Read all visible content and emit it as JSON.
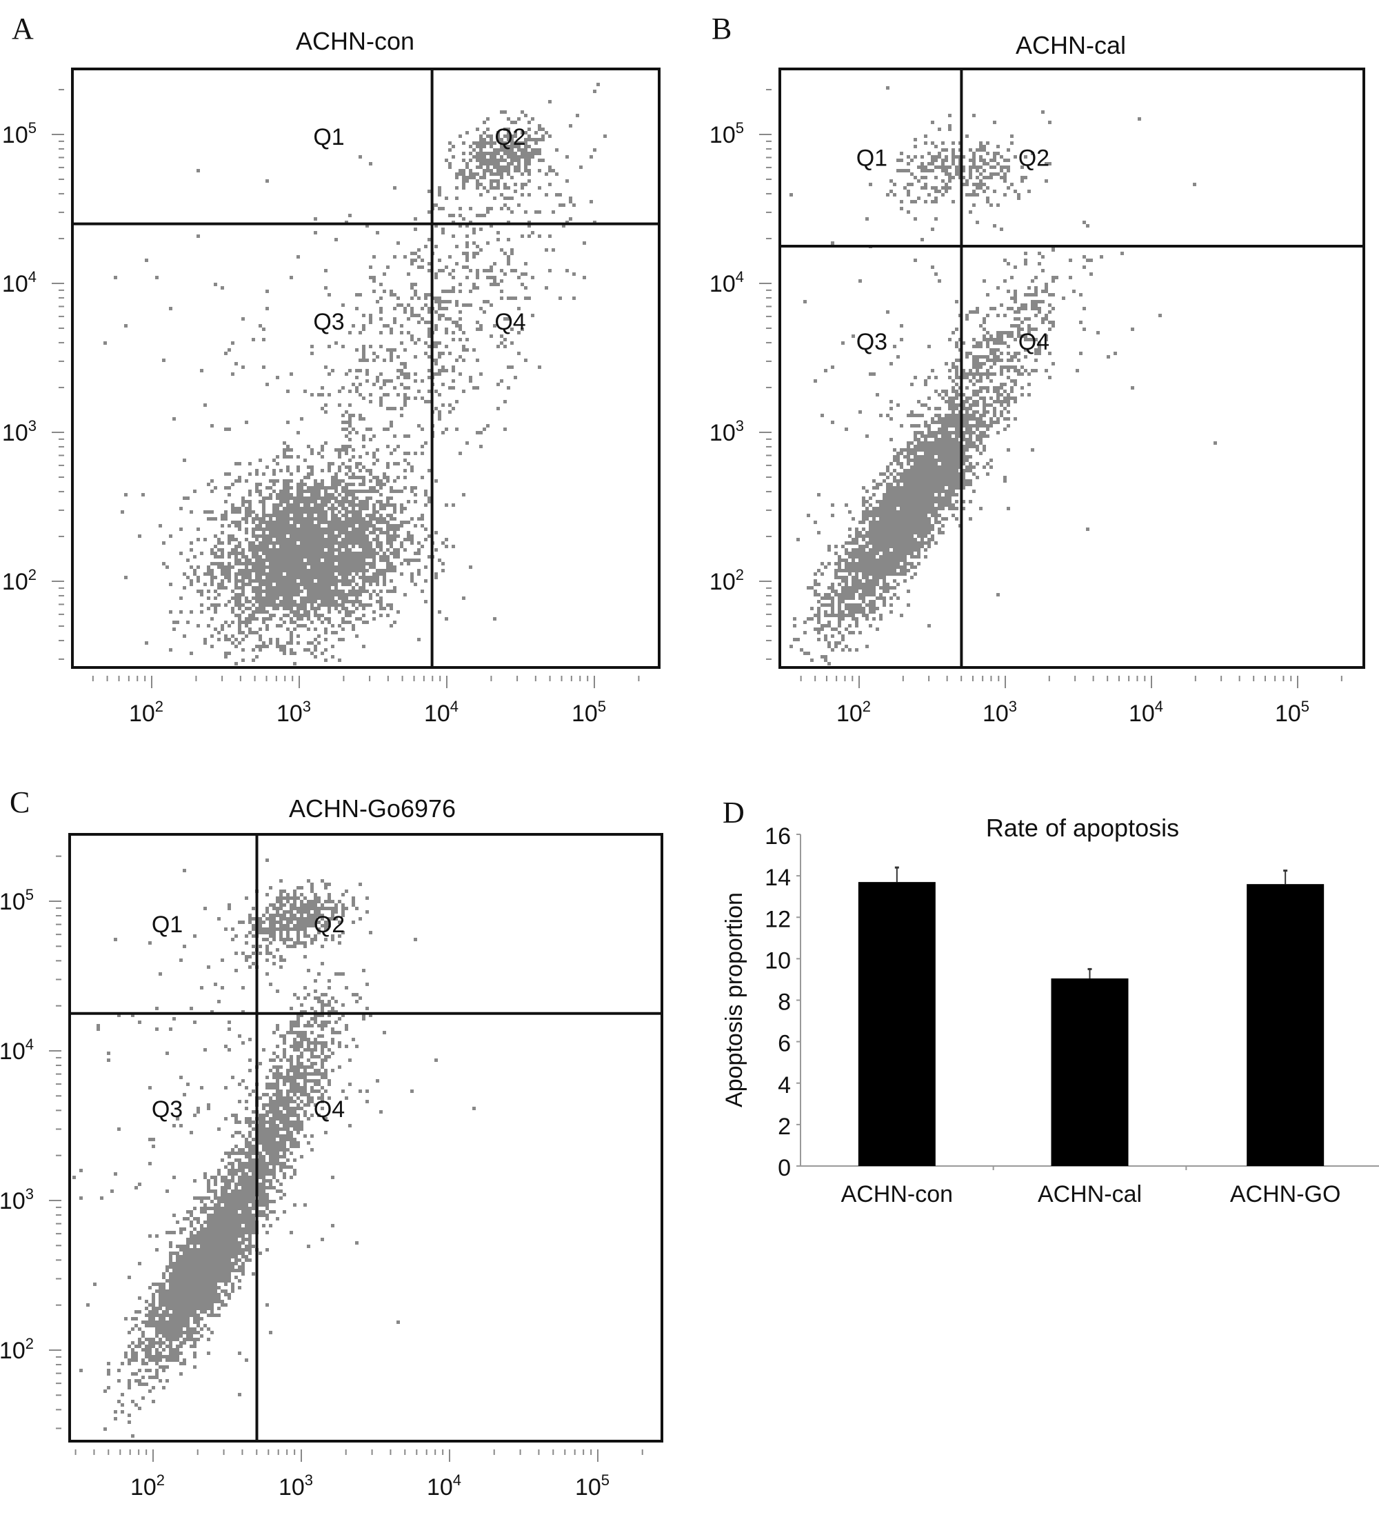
{
  "chart_data": [
    {
      "panel": "A",
      "type": "scatter",
      "title": "ACHN-con",
      "xscale": "log",
      "yscale": "log",
      "xticks": [
        "10^2",
        "10^3",
        "10^4",
        "10^5"
      ],
      "yticks": [
        "10^5",
        "10^4",
        "10^3",
        "10^2"
      ],
      "xlim_log10": [
        1.6,
        5.45
      ],
      "ylim_log10": [
        1.5,
        5.45
      ],
      "gate_log10": {
        "x": 3.9,
        "y": 4.4
      },
      "quadrants": [
        "Q1",
        "Q2",
        "Q3",
        "Q4"
      ],
      "populations": [
        {
          "n": 3200,
          "cx": 3.05,
          "cy": 2.2,
          "sx": 0.33,
          "sy": 0.28,
          "rho": 0.2
        },
        {
          "n": 350,
          "cx": 4.35,
          "cy": 4.85,
          "sx": 0.15,
          "sy": 0.12,
          "rho": 0.3
        },
        {
          "n": 700,
          "cx": 3.9,
          "cy": 3.7,
          "sx": 0.45,
          "sy": 0.6,
          "rho": 0.7
        },
        {
          "n": 120,
          "cx": 3.0,
          "cy": 3.2,
          "sx": 0.7,
          "sy": 0.9,
          "rho": 0.2
        }
      ]
    },
    {
      "panel": "B",
      "type": "scatter",
      "title": "ACHN-cal",
      "xscale": "log",
      "yscale": "log",
      "xticks": [
        "10^2",
        "10^3",
        "10^4",
        "10^5"
      ],
      "yticks": [
        "10^5",
        "10^4",
        "10^3",
        "10^2"
      ],
      "xlim_log10": [
        1.45,
        5.35
      ],
      "ylim_log10": [
        1.5,
        5.45
      ],
      "gate_log10": {
        "x": 2.7,
        "y": 4.25
      },
      "quadrants": [
        "Q1",
        "Q2",
        "Q3",
        "Q4"
      ],
      "populations": [
        {
          "n": 3000,
          "cx": 2.3,
          "cy": 2.45,
          "sx": 0.25,
          "sy": 0.35,
          "rho": 0.85
        },
        {
          "n": 600,
          "cx": 2.8,
          "cy": 3.3,
          "sx": 0.3,
          "sy": 0.45,
          "rho": 0.8
        },
        {
          "n": 250,
          "cx": 2.7,
          "cy": 4.75,
          "sx": 0.25,
          "sy": 0.12,
          "rho": 0.1
        },
        {
          "n": 150,
          "cx": 2.5,
          "cy": 3.5,
          "sx": 0.6,
          "sy": 0.8,
          "rho": 0.3
        }
      ]
    },
    {
      "panel": "C",
      "type": "scatter",
      "title": "ACHN-Go6976",
      "xscale": "log",
      "yscale": "log",
      "xticks": [
        "10^2",
        "10^3",
        "10^4",
        "10^5"
      ],
      "yticks": [
        "10^5",
        "10^4",
        "10^3",
        "10^2"
      ],
      "xlim_log10": [
        1.55,
        5.45
      ],
      "ylim_log10": [
        1.55,
        5.45
      ],
      "gate_log10": {
        "x": 2.7,
        "y": 4.25
      },
      "quadrants": [
        "Q1",
        "Q2",
        "Q3",
        "Q4"
      ],
      "populations": [
        {
          "n": 2800,
          "cx": 2.35,
          "cy": 2.6,
          "sx": 0.22,
          "sy": 0.35,
          "rho": 0.85
        },
        {
          "n": 900,
          "cx": 2.85,
          "cy": 3.6,
          "sx": 0.2,
          "sy": 0.4,
          "rho": 0.8
        },
        {
          "n": 400,
          "cx": 2.95,
          "cy": 4.9,
          "sx": 0.18,
          "sy": 0.12,
          "rho": 0.4
        },
        {
          "n": 200,
          "cx": 2.5,
          "cy": 3.6,
          "sx": 0.5,
          "sy": 0.8,
          "rho": 0.3
        }
      ]
    },
    {
      "panel": "D",
      "type": "bar",
      "title": "Rate of apoptosis",
      "xlabel": "",
      "ylabel": "Apoptosis proportion",
      "ylim": [
        0,
        16
      ],
      "yticks": [
        0,
        2,
        4,
        6,
        8,
        10,
        12,
        14,
        16
      ],
      "categories": [
        "ACHN-con",
        "ACHN-cal",
        "ACHN-GO"
      ],
      "values": [
        13.7,
        9.05,
        13.6
      ],
      "errors": [
        0.7,
        0.45,
        0.65
      ],
      "bar_color": "#000000"
    }
  ],
  "point_color": "#888888"
}
